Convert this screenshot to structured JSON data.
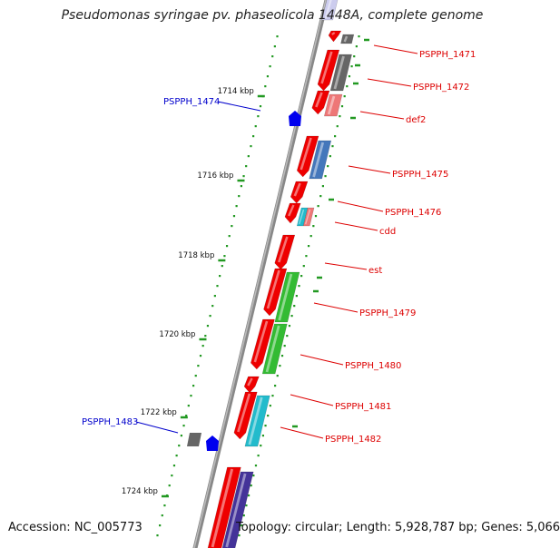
{
  "title": "Pseudomonas syringae pv. phaseolicola 1448A, complete genome",
  "accession_text": "Accession: NC_005773",
  "summary_text": "Topology: circular; Length: 5,928,787 bp; Genes: 5,066",
  "kbp_labels": [
    "1714 kbp",
    "1716 kbp",
    "1718 kbp",
    "1720 kbp",
    "1722 kbp",
    "1724 kbp"
  ],
  "gene_labels_right": [
    "PSPPH_1471",
    "PSPPH_1472",
    "def2",
    "PSPPH_1475",
    "PSPPH_1476",
    "cdd",
    "est",
    "PSPPH_1479",
    "PSPPH_1480",
    "PSPPH_1481",
    "PSPPH_1482"
  ],
  "gene_labels_left": [
    "PSPPH_1474",
    "PSPPH_1483"
  ],
  "colors": {
    "label_red": "#dd0000",
    "label_blue": "#0000cc",
    "backbone": "#888888",
    "tick_green": "#229922",
    "gene_red": "#ee0000",
    "cds_gray": "#666666",
    "cds_pink": "#ee7777",
    "cds_steelblue": "#4477bb",
    "cds_green": "#33bb33",
    "cds_cyan": "#22bbcc",
    "cds_purple": "#443399",
    "gene_blue": "#0000ee"
  }
}
